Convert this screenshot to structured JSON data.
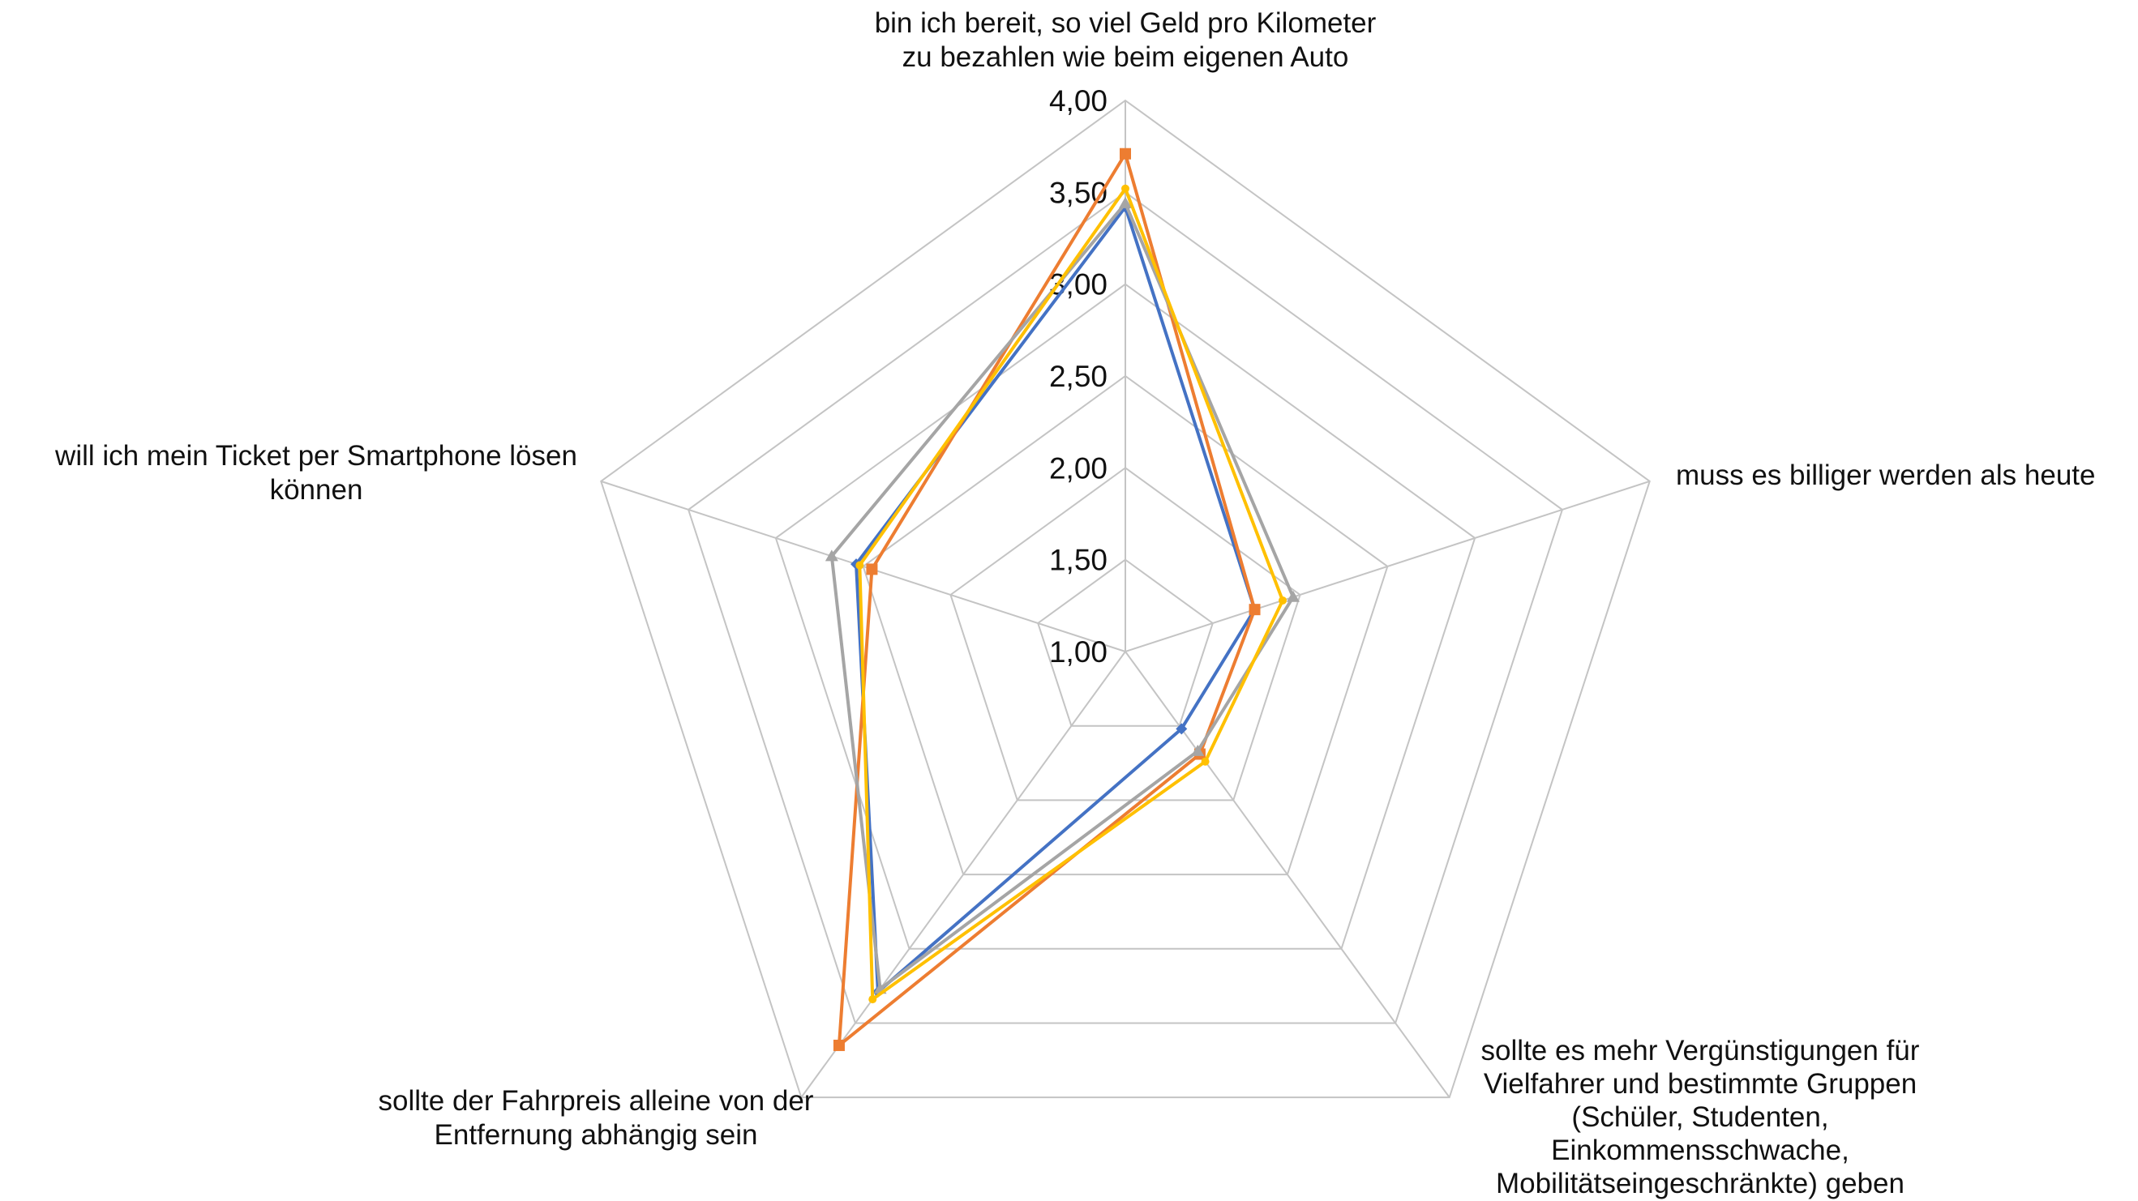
{
  "chart_data": {
    "type": "radar",
    "axes": [
      [
        "bin ich bereit, so viel Geld pro Kilometer",
        "zu bezahlen wie beim eigenen Auto"
      ],
      [
        "muss es billiger werden als heute"
      ],
      [
        "sollte es mehr Vergünstigungen für",
        "Vielfahrer und bestimmte Gruppen",
        "(Schüler, Studenten,",
        "Einkommensschwache,",
        "Mobilitätseingeschränkte) geben"
      ],
      [
        "sollte der Fahrpreis alleine von der",
        "Entfernung abhängig sein"
      ],
      [
        "will ich mein Ticket per Smartphone lösen",
        "können"
      ]
    ],
    "tick_labels": [
      "1,00",
      "1,50",
      "2,00",
      "2,50",
      "3,00",
      "3,50",
      "4,00"
    ],
    "rmin": 1.0,
    "rmax": 4.0,
    "grid": true,
    "legend": "none",
    "series": [
      {
        "color": "#4472c4",
        "marker": "diamond",
        "values": [
          3.42,
          1.74,
          1.52,
          3.29,
          2.54
        ]
      },
      {
        "color": "#ed7d31",
        "marker": "square",
        "values": [
          3.71,
          1.74,
          1.69,
          3.65,
          2.45
        ]
      },
      {
        "color": "#a5a5a5",
        "marker": "triangle",
        "values": [
          3.44,
          1.96,
          1.67,
          3.27,
          2.68
        ]
      },
      {
        "color": "#ffc000",
        "marker": "circle",
        "values": [
          3.52,
          1.9,
          1.74,
          3.34,
          2.52
        ]
      }
    ]
  }
}
